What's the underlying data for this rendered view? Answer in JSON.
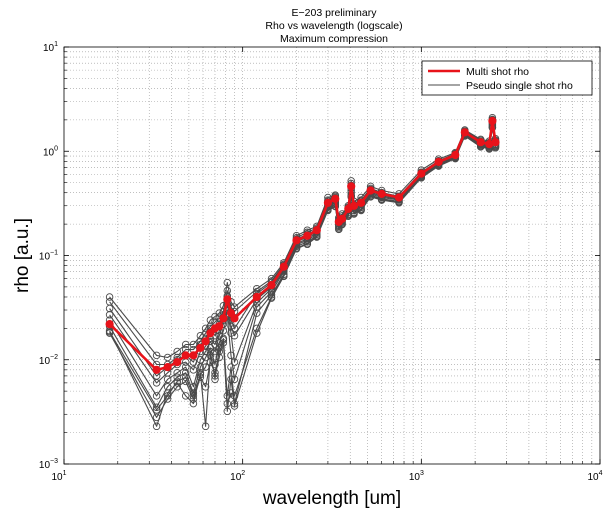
{
  "chart_data": {
    "type": "line",
    "title": [
      "E−203 preliminary",
      "Rho vs wavelength (logscale)",
      "Maximum compression"
    ],
    "xlabel": "wavelength [um]",
    "ylabel": "rho [a.u.]",
    "xscale": "log",
    "yscale": "log",
    "xlim": [
      10,
      10000
    ],
    "ylim": [
      0.001,
      10
    ],
    "grid": true,
    "legend_position": "top-right",
    "x_ticks": [
      {
        "base": "10",
        "exp": "1"
      },
      {
        "base": "10",
        "exp": "2"
      },
      {
        "base": "10",
        "exp": "3"
      },
      {
        "base": "10",
        "exp": "4"
      }
    ],
    "y_ticks": [
      {
        "base": "10",
        "exp": "−3"
      },
      {
        "base": "10",
        "exp": "−2"
      },
      {
        "base": "10",
        "exp": "−1"
      },
      {
        "base": "10",
        "exp": "0"
      },
      {
        "base": "10",
        "exp": "1"
      }
    ],
    "colors": {
      "multi": "#e8131a",
      "single": "#4a4a4a"
    },
    "x": [
      18,
      33,
      38,
      43,
      48,
      53,
      58,
      62,
      66,
      70,
      74,
      78,
      82,
      86,
      90,
      120,
      145,
      170,
      200,
      230,
      260,
      300,
      330,
      345,
      360,
      390,
      405,
      420,
      460,
      520,
      600,
      750,
      1000,
      1250,
      1550,
      1750,
      2150,
      2400,
      2500,
      2600
    ],
    "series": [
      {
        "name": "Multi shot rho",
        "values": [
          0.022,
          0.008,
          0.0085,
          0.0095,
          0.011,
          0.011,
          0.013,
          0.015,
          0.018,
          0.02,
          0.021,
          0.025,
          0.038,
          0.028,
          0.025,
          0.04,
          0.052,
          0.078,
          0.14,
          0.155,
          0.175,
          0.32,
          0.35,
          0.21,
          0.225,
          0.28,
          0.46,
          0.3,
          0.32,
          0.42,
          0.39,
          0.36,
          0.61,
          0.79,
          0.92,
          1.52,
          1.22,
          1.17,
          1.95,
          1.22
        ]
      },
      {
        "name": "Pseudo single shot rho",
        "values": [
          0.04,
          0.011,
          0.0105,
          0.012,
          0.014,
          0.014,
          0.017,
          0.02,
          0.024,
          0.026,
          0.028,
          0.033,
          0.055,
          0.036,
          0.032,
          0.048,
          0.06,
          0.085,
          0.155,
          0.175,
          0.19,
          0.36,
          0.38,
          0.23,
          0.25,
          0.3,
          0.52,
          0.33,
          0.36,
          0.46,
          0.42,
          0.39,
          0.66,
          0.84,
          0.97,
          1.6,
          1.3,
          1.25,
          2.1,
          1.32
        ]
      },
      {
        "name": "",
        "values": [
          0.036,
          0.009,
          0.009,
          0.0105,
          0.0125,
          0.0125,
          0.015,
          0.018,
          0.021,
          0.023,
          0.025,
          0.029,
          0.046,
          0.032,
          0.029,
          0.045,
          0.057,
          0.082,
          0.148,
          0.167,
          0.183,
          0.34,
          0.37,
          0.22,
          0.24,
          0.29,
          0.49,
          0.31,
          0.34,
          0.44,
          0.4,
          0.37,
          0.63,
          0.81,
          0.95,
          1.56,
          1.27,
          1.21,
          2.02,
          1.28
        ]
      },
      {
        "name": "",
        "values": [
          0.031,
          0.007,
          0.0085,
          0.01,
          0.011,
          0.0095,
          0.014,
          0.016,
          0.02,
          0.017,
          0.022,
          0.027,
          0.041,
          0.024,
          0.02,
          0.043,
          0.055,
          0.08,
          0.143,
          0.16,
          0.178,
          0.33,
          0.36,
          0.215,
          0.23,
          0.285,
          0.47,
          0.305,
          0.33,
          0.43,
          0.4,
          0.365,
          0.62,
          0.8,
          0.94,
          1.54,
          1.24,
          1.19,
          1.98,
          1.25
        ]
      },
      {
        "name": "",
        "values": [
          0.027,
          0.006,
          0.0075,
          0.009,
          0.0095,
          0.008,
          0.012,
          0.0135,
          0.016,
          0.014,
          0.019,
          0.024,
          0.034,
          0.021,
          0.017,
          0.038,
          0.05,
          0.075,
          0.135,
          0.15,
          0.17,
          0.31,
          0.34,
          0.2,
          0.22,
          0.27,
          0.44,
          0.29,
          0.31,
          0.41,
          0.38,
          0.35,
          0.6,
          0.78,
          0.9,
          1.5,
          1.2,
          1.15,
          1.9,
          1.18
        ]
      },
      {
        "name": "",
        "values": [
          0.024,
          0.0045,
          0.0065,
          0.0075,
          0.0085,
          0.0055,
          0.01,
          0.012,
          0.015,
          0.012,
          0.017,
          0.022,
          0.03,
          0.018,
          0.0095,
          0.035,
          0.048,
          0.072,
          0.13,
          0.145,
          0.165,
          0.3,
          0.33,
          0.195,
          0.215,
          0.26,
          0.42,
          0.28,
          0.3,
          0.4,
          0.37,
          0.345,
          0.59,
          0.76,
          0.89,
          1.48,
          1.18,
          1.13,
          1.85,
          1.16
        ]
      },
      {
        "name": "",
        "values": [
          0.021,
          0.0035,
          0.0055,
          0.0068,
          0.0075,
          0.0048,
          0.0085,
          0.0105,
          0.013,
          0.009,
          0.0145,
          0.019,
          0.026,
          0.011,
          0.0065,
          0.032,
          0.045,
          0.07,
          0.127,
          0.14,
          0.16,
          0.29,
          0.32,
          0.19,
          0.21,
          0.25,
          0.4,
          0.27,
          0.29,
          0.39,
          0.36,
          0.34,
          0.58,
          0.75,
          0.88,
          1.46,
          1.16,
          1.11,
          1.8,
          1.14
        ]
      },
      {
        "name": "",
        "values": [
          0.019,
          0.0023,
          0.0048,
          0.006,
          0.0045,
          0.0038,
          0.0075,
          0.0023,
          0.011,
          0.007,
          0.0105,
          0.016,
          0.0045,
          0.0085,
          0.0038,
          0.028,
          0.042,
          0.066,
          0.122,
          0.135,
          0.155,
          0.28,
          0.31,
          0.185,
          0.205,
          0.245,
          0.38,
          0.26,
          0.28,
          0.38,
          0.35,
          0.33,
          0.57,
          0.74,
          0.87,
          1.44,
          1.14,
          1.09,
          1.75,
          1.12
        ]
      },
      {
        "name": "",
        "values": [
          0.018,
          0.0028,
          0.0042,
          0.0055,
          0.0062,
          0.0042,
          0.0068,
          0.0055,
          0.0095,
          0.0075,
          0.012,
          0.0145,
          0.0038,
          0.0048,
          0.0045,
          0.02,
          0.04,
          0.064,
          0.118,
          0.13,
          0.152,
          0.275,
          0.3,
          0.18,
          0.2,
          0.24,
          0.37,
          0.255,
          0.275,
          0.37,
          0.345,
          0.325,
          0.56,
          0.73,
          0.86,
          1.42,
          1.12,
          1.07,
          1.7,
          1.1
        ]
      },
      {
        "name": "",
        "values": [
          0.0185,
          0.0033,
          0.0045,
          0.0062,
          0.0068,
          0.0045,
          0.0072,
          0.0085,
          0.012,
          0.0065,
          0.013,
          0.0155,
          0.0032,
          0.0065,
          0.0036,
          0.018,
          0.039,
          0.063,
          0.116,
          0.128,
          0.15,
          0.27,
          0.295,
          0.178,
          0.198,
          0.238,
          0.365,
          0.25,
          0.27,
          0.365,
          0.34,
          0.32,
          0.555,
          0.72,
          0.85,
          1.4,
          1.1,
          1.05,
          1.68,
          1.08
        ]
      }
    ]
  }
}
